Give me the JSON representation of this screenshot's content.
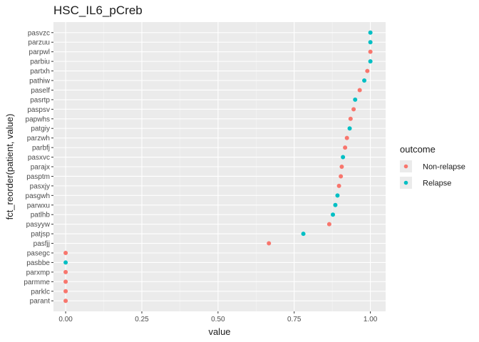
{
  "chart_data": {
    "type": "scatter",
    "title": "HSC_IL6_pCreb",
    "xlabel": "value",
    "ylabel": "fct_reorder(patient, value)",
    "xlim": [
      -0.04,
      1.05
    ],
    "xticks": [
      "0.00",
      "0.25",
      "0.50",
      "0.75",
      "1.00"
    ],
    "xtick_values": [
      0,
      0.25,
      0.5,
      0.75,
      1.0
    ],
    "grid": true,
    "legend": {
      "title": "outcome",
      "position": "right",
      "entries": [
        {
          "label": "Non-relapse",
          "color": "#F8766D"
        },
        {
          "label": "Relapse",
          "color": "#00BFC4"
        }
      ]
    },
    "categories": [
      "pasvzc",
      "parzuu",
      "parpwl",
      "parbiu",
      "partxh",
      "pathiw",
      "paself",
      "pasrtp",
      "paspsv",
      "papwhs",
      "patgiy",
      "parzwh",
      "parbfj",
      "pasxvc",
      "parajx",
      "pasptm",
      "pasxjy",
      "pasgwh",
      "parwxu",
      "patlhb",
      "pasyyw",
      "patjsp",
      "pasfjj",
      "pasegc",
      "pasbbe",
      "parxmp",
      "parmme",
      "parklc",
      "parant"
    ],
    "points": [
      {
        "patient": "pasvzc",
        "value": 1.0,
        "outcome": "Relapse"
      },
      {
        "patient": "parzuu",
        "value": 1.0,
        "outcome": "Relapse"
      },
      {
        "patient": "parpwl",
        "value": 1.0,
        "outcome": "Non-relapse"
      },
      {
        "patient": "parbiu",
        "value": 1.0,
        "outcome": "Relapse"
      },
      {
        "patient": "partxh",
        "value": 0.99,
        "outcome": "Non-relapse"
      },
      {
        "patient": "pathiw",
        "value": 0.98,
        "outcome": "Relapse"
      },
      {
        "patient": "paself",
        "value": 0.965,
        "outcome": "Non-relapse"
      },
      {
        "patient": "pasrtp",
        "value": 0.95,
        "outcome": "Relapse"
      },
      {
        "patient": "paspsv",
        "value": 0.945,
        "outcome": "Non-relapse"
      },
      {
        "patient": "papwhs",
        "value": 0.935,
        "outcome": "Non-relapse"
      },
      {
        "patient": "patgiy",
        "value": 0.932,
        "outcome": "Relapse"
      },
      {
        "patient": "parzwh",
        "value": 0.923,
        "outcome": "Non-relapse"
      },
      {
        "patient": "parbfj",
        "value": 0.917,
        "outcome": "Non-relapse"
      },
      {
        "patient": "pasxvc",
        "value": 0.91,
        "outcome": "Relapse"
      },
      {
        "patient": "parajx",
        "value": 0.906,
        "outcome": "Non-relapse"
      },
      {
        "patient": "pasptm",
        "value": 0.903,
        "outcome": "Non-relapse"
      },
      {
        "patient": "pasxjy",
        "value": 0.897,
        "outcome": "Non-relapse"
      },
      {
        "patient": "pasgwh",
        "value": 0.892,
        "outcome": "Relapse"
      },
      {
        "patient": "parwxu",
        "value": 0.885,
        "outcome": "Relapse"
      },
      {
        "patient": "patlhb",
        "value": 0.877,
        "outcome": "Relapse"
      },
      {
        "patient": "pasyyw",
        "value": 0.865,
        "outcome": "Non-relapse"
      },
      {
        "patient": "patjsp",
        "value": 0.78,
        "outcome": "Relapse"
      },
      {
        "patient": "pasfjj",
        "value": 0.667,
        "outcome": "Non-relapse"
      },
      {
        "patient": "pasegc",
        "value": 0.0,
        "outcome": "Non-relapse"
      },
      {
        "patient": "pasbbe",
        "value": 0.0,
        "outcome": "Relapse"
      },
      {
        "patient": "parxmp",
        "value": 0.0,
        "outcome": "Non-relapse"
      },
      {
        "patient": "parmme",
        "value": 0.0,
        "outcome": "Non-relapse"
      },
      {
        "patient": "parklc",
        "value": 0.0,
        "outcome": "Non-relapse"
      },
      {
        "patient": "parant",
        "value": 0.0,
        "outcome": "Non-relapse"
      }
    ]
  },
  "colors": {
    "panel_background": "#EBEBEB",
    "grid_major": "#FFFFFF",
    "tick_text": "#4D4D4D"
  }
}
